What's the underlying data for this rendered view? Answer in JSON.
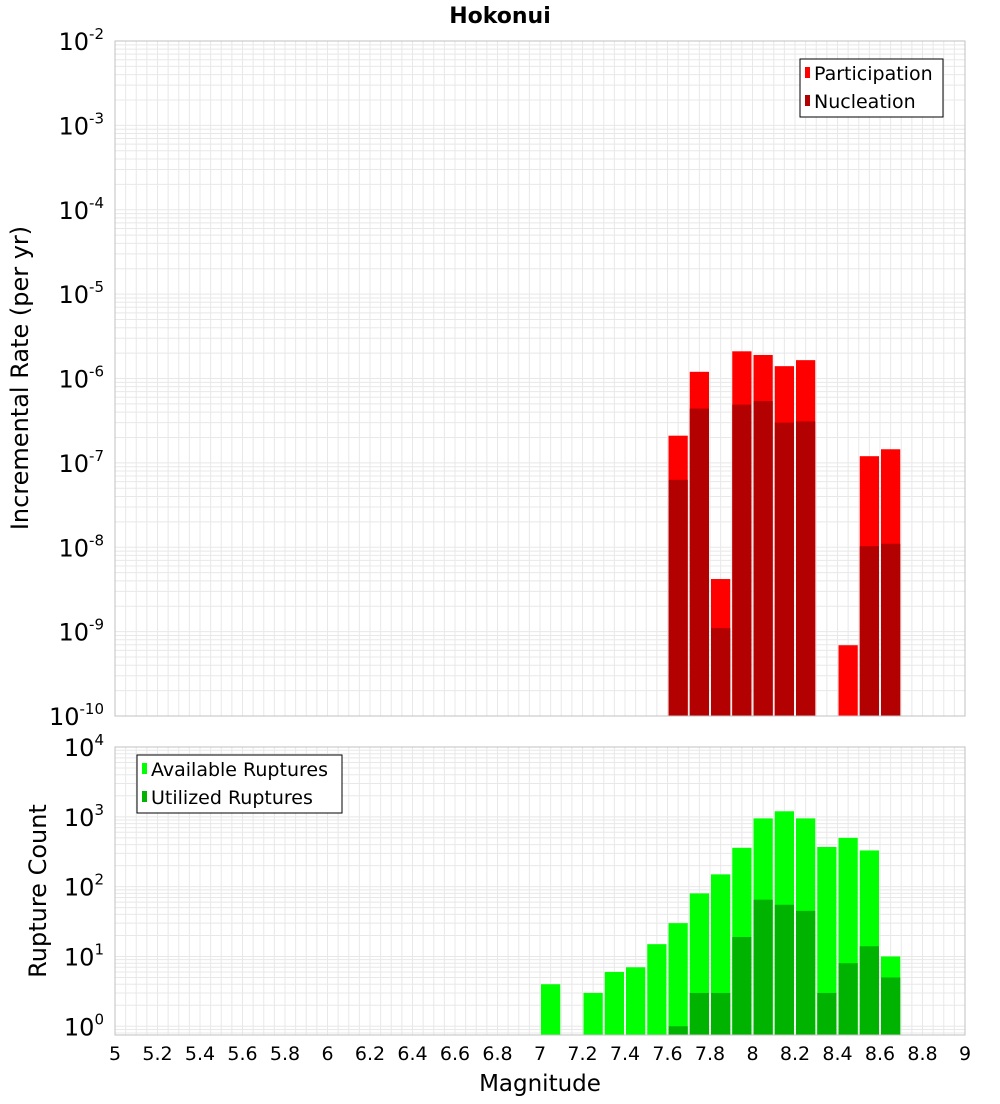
{
  "chart_data": [
    {
      "type": "bar",
      "title": "Hokonui",
      "ylabel": "Incremental Rate (per yr)",
      "xlabel": "",
      "yscale": "log",
      "ylim": [
        1e-10,
        0.01
      ],
      "xlim": [
        5,
        9
      ],
      "bar_width": 0.1,
      "grid": true,
      "legend_position": "top-right",
      "series": [
        {
          "name": "Participation",
          "color": "#ff0000",
          "x": [
            7.65,
            7.75,
            7.85,
            7.95,
            8.05,
            8.15,
            8.25,
            8.45,
            8.55,
            8.65
          ],
          "values": [
            2.1e-07,
            1.2e-06,
            4.2e-09,
            2.1e-06,
            1.9e-06,
            1.4e-06,
            1.65e-06,
            6.9e-10,
            1.2e-07,
            1.45e-07
          ]
        },
        {
          "name": "Nucleation",
          "color": "#b30000",
          "x": [
            7.65,
            7.75,
            7.85,
            7.95,
            8.05,
            8.15,
            8.25,
            8.55,
            8.65
          ],
          "values": [
            6.3e-08,
            4.4e-07,
            1.1e-09,
            4.9e-07,
            5.4e-07,
            3e-07,
            3.1e-07,
            1.03e-08,
            1.1e-08
          ]
        }
      ],
      "yticks": [
        {
          "value": 0.01,
          "base": "10",
          "exp": "-2"
        },
        {
          "value": 0.001,
          "base": "10",
          "exp": "-3"
        },
        {
          "value": 0.0001,
          "base": "10",
          "exp": "-4"
        },
        {
          "value": 1e-05,
          "base": "10",
          "exp": "-5"
        },
        {
          "value": 1e-06,
          "base": "10",
          "exp": "-6"
        },
        {
          "value": 1e-07,
          "base": "10",
          "exp": "-7"
        },
        {
          "value": 1e-08,
          "base": "10",
          "exp": "-8"
        },
        {
          "value": 1e-09,
          "base": "10",
          "exp": "-9"
        },
        {
          "value": 1e-10,
          "base": "10",
          "exp": "-10"
        }
      ]
    },
    {
      "type": "bar",
      "title": "",
      "ylabel": "Rupture Count",
      "xlabel": "Magnitude",
      "yscale": "log",
      "ylim": [
        0.75,
        10000
      ],
      "xlim": [
        5,
        9
      ],
      "bar_width": 0.1,
      "grid": true,
      "legend_position": "top-left",
      "series": [
        {
          "name": "Available Ruptures",
          "color": "#00ff00",
          "x": [
            7.05,
            7.25,
            7.35,
            7.45,
            7.55,
            7.65,
            7.75,
            7.85,
            7.95,
            8.05,
            8.15,
            8.25,
            8.35,
            8.45,
            8.55,
            8.65
          ],
          "values": [
            4,
            3,
            6,
            7,
            15,
            30,
            80,
            150,
            360,
            950,
            1200,
            950,
            370,
            500,
            330,
            10
          ]
        },
        {
          "name": "Utilized Ruptures",
          "color": "#00b300",
          "x": [
            7.65,
            7.75,
            7.85,
            7.95,
            8.05,
            8.15,
            8.25,
            8.35,
            8.45,
            8.55,
            8.65
          ],
          "values": [
            1,
            3,
            3,
            19,
            65,
            55,
            45,
            3,
            8,
            14,
            5
          ]
        }
      ],
      "yticks": [
        {
          "value": 1,
          "base": "10",
          "exp": "0"
        },
        {
          "value": 10,
          "base": "10",
          "exp": "1"
        },
        {
          "value": 100,
          "base": "10",
          "exp": "2"
        },
        {
          "value": 1000,
          "base": "10",
          "exp": "3"
        },
        {
          "value": 10000,
          "base": "10",
          "exp": "4"
        }
      ],
      "xticks": [
        "5",
        "5.2",
        "5.4",
        "5.6",
        "5.8",
        "6",
        "6.2",
        "6.4",
        "6.6",
        "6.8",
        "7",
        "7.2",
        "7.4",
        "7.6",
        "7.8",
        "8",
        "8.2",
        "8.4",
        "8.6",
        "8.8",
        "9"
      ]
    }
  ],
  "colors": {
    "grid": "#e8e8e8",
    "frame": "#c0c0c0"
  }
}
